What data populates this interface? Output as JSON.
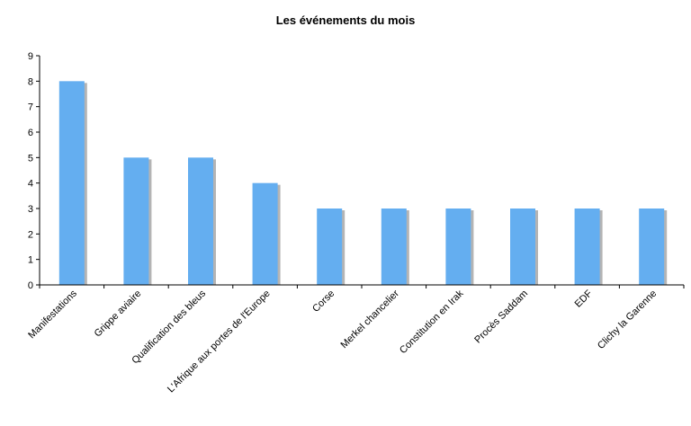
{
  "chart_data": {
    "type": "bar",
    "title": "Les événements du mois",
    "xlabel": "",
    "ylabel": "",
    "categories": [
      "Manifestations",
      "Grippe aviaire",
      "Qualification des bleus",
      "L'Afrique aux portes de l'Europe",
      "Corse",
      "Merkel chancelier",
      "Constitution en Irak",
      "Procès Saddam",
      "EDF",
      "Clichy la Garenne"
    ],
    "values": [
      8,
      5,
      5,
      4,
      3,
      3,
      3,
      3,
      3,
      3
    ],
    "ylim": [
      0,
      9
    ],
    "yticks": [
      "0",
      "1",
      "2",
      "3",
      "4",
      "5",
      "6",
      "7",
      "8",
      "9"
    ],
    "grid": false,
    "legend": "none",
    "colors": {
      "bar": "#64AEF0",
      "bar_shadow": "#B4B4B4",
      "axis": "#000000"
    }
  }
}
